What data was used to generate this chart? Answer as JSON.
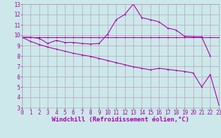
{
  "background_color": "#cce8ea",
  "grid_color": "#b090b0",
  "line_color": "#aa00aa",
  "x_min": 0,
  "x_max": 23,
  "y_min": 3,
  "y_max": 13,
  "xlabel": "Windchill (Refroidissement éolien,°C)",
  "xlabel_fontsize": 6.5,
  "tick_fontsize": 5.5,
  "line1_x": [
    0,
    1,
    2,
    3,
    4,
    5,
    6,
    7,
    8,
    9,
    10,
    11,
    12,
    13,
    14,
    15,
    16,
    17,
    18,
    19,
    20,
    21,
    22,
    23
  ],
  "line1_y": [
    9.8,
    9.8,
    9.8,
    9.8,
    9.8,
    9.8,
    9.8,
    9.8,
    9.8,
    9.8,
    9.8,
    9.8,
    9.8,
    9.8,
    9.8,
    9.8,
    9.8,
    9.8,
    9.8,
    9.8,
    9.8,
    9.8,
    9.8,
    9.8
  ],
  "line2_x": [
    0,
    1,
    2,
    3,
    4,
    5,
    6,
    7,
    8,
    9,
    10,
    11,
    12,
    13,
    14,
    15,
    16,
    17,
    18,
    19,
    20,
    21,
    22
  ],
  "line2_y": [
    9.8,
    9.8,
    9.7,
    9.2,
    9.5,
    9.3,
    9.3,
    9.2,
    9.15,
    9.2,
    10.1,
    11.5,
    12.0,
    13.0,
    11.7,
    11.5,
    11.3,
    10.7,
    10.5,
    9.9,
    9.85,
    9.85,
    8.0
  ],
  "line3_x": [
    0,
    1,
    2,
    3,
    4,
    5,
    6,
    7,
    8,
    9,
    10,
    11,
    12,
    13,
    14,
    15,
    16,
    17,
    18,
    19,
    20,
    21,
    22,
    23
  ],
  "line3_y": [
    9.8,
    9.4,
    9.1,
    8.85,
    8.65,
    8.45,
    8.25,
    8.1,
    7.95,
    7.75,
    7.55,
    7.35,
    7.15,
    6.95,
    6.8,
    6.65,
    6.8,
    6.7,
    6.6,
    6.5,
    6.35,
    5.0,
    6.2,
    3.3
  ]
}
